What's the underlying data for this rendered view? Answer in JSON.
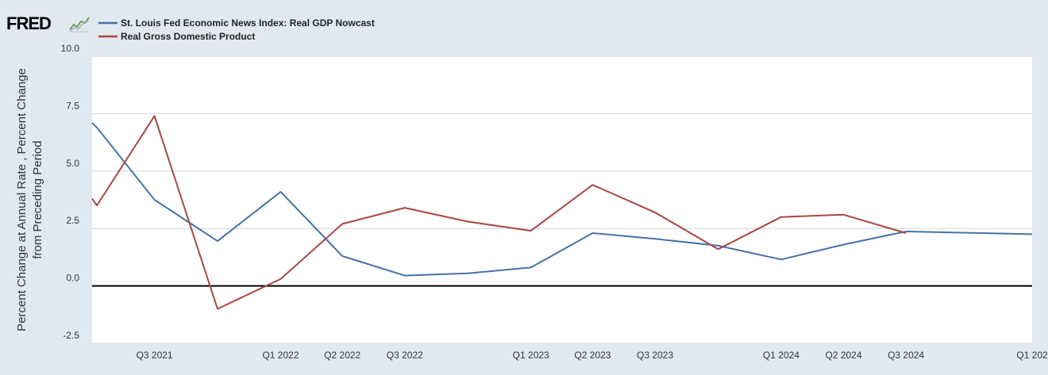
{
  "brand": {
    "logo_text": "FRED",
    "logo_icon": "fred-line-chart-icon"
  },
  "chart_data": {
    "type": "line",
    "ylabel": "Percent Change at Annual Rate , Percent Change from Preceding Period",
    "ylabel_lines": [
      "Percent Change at Annual Rate , Percent Change",
      "from Preceding Period"
    ],
    "ylim": [
      -2.5,
      10.0
    ],
    "yticks": [
      "10.0",
      "7.5",
      "5.0",
      "2.5",
      "0.0",
      "-2.5"
    ],
    "ytick_values": [
      10.0,
      7.5,
      5.0,
      2.5,
      0.0,
      -2.5
    ],
    "xlim": [
      "2021-04-01",
      "2025-01-01"
    ],
    "xticks": [
      {
        "label": "Q3 2021",
        "date": "2021-07-01"
      },
      {
        "label": "Q1 2022",
        "date": "2022-01-01"
      },
      {
        "label": "Q2 2022",
        "date": "2022-04-01"
      },
      {
        "label": "Q3 2022",
        "date": "2022-07-01"
      },
      {
        "label": "Q1 2023",
        "date": "2023-01-01"
      },
      {
        "label": "Q2 2023",
        "date": "2023-04-01"
      },
      {
        "label": "Q3 2023",
        "date": "2023-07-01"
      },
      {
        "label": "Q1 2024",
        "date": "2024-01-01"
      },
      {
        "label": "Q2 2024",
        "date": "2024-04-01"
      },
      {
        "label": "Q3 2024",
        "date": "2024-07-01"
      },
      {
        "label": "Q1 202",
        "date": "2025-01-01"
      }
    ],
    "grid": true,
    "legend_position": "top-left",
    "series": [
      {
        "name": "St. Louis Fed Economic News Index: Real GDP Nowcast",
        "color": "#4572a7",
        "points": [
          {
            "x": "2021-04-01",
            "y": 7.1
          },
          {
            "x": "2021-04-08",
            "y": 6.9
          },
          {
            "x": "2021-07-01",
            "y": 3.75
          },
          {
            "x": "2021-10-01",
            "y": 1.95
          },
          {
            "x": "2022-01-01",
            "y": 4.1
          },
          {
            "x": "2022-04-01",
            "y": 1.3
          },
          {
            "x": "2022-07-01",
            "y": 0.45
          },
          {
            "x": "2022-10-01",
            "y": 0.55
          },
          {
            "x": "2023-01-01",
            "y": 0.8
          },
          {
            "x": "2023-04-01",
            "y": 2.3
          },
          {
            "x": "2023-07-01",
            "y": 2.05
          },
          {
            "x": "2023-10-01",
            "y": 1.75
          },
          {
            "x": "2024-01-01",
            "y": 1.15
          },
          {
            "x": "2024-04-01",
            "y": 1.8
          },
          {
            "x": "2024-07-01",
            "y": 2.37
          },
          {
            "x": "2025-01-01",
            "y": 2.25
          }
        ]
      },
      {
        "name": "Real Gross Domestic Product",
        "color": "#aa4643",
        "points": [
          {
            "x": "2021-04-01",
            "y": 3.8
          },
          {
            "x": "2021-04-08",
            "y": 3.5
          },
          {
            "x": "2021-07-01",
            "y": 7.4
          },
          {
            "x": "2021-10-01",
            "y": -1.0
          },
          {
            "x": "2022-01-01",
            "y": 0.3
          },
          {
            "x": "2022-04-01",
            "y": 2.7
          },
          {
            "x": "2022-07-01",
            "y": 3.4
          },
          {
            "x": "2022-10-01",
            "y": 2.8
          },
          {
            "x": "2023-01-01",
            "y": 2.4
          },
          {
            "x": "2023-04-01",
            "y": 4.4
          },
          {
            "x": "2023-07-01",
            "y": 3.2
          },
          {
            "x": "2023-10-01",
            "y": 1.6
          },
          {
            "x": "2024-01-01",
            "y": 3.0
          },
          {
            "x": "2024-04-01",
            "y": 3.1
          },
          {
            "x": "2024-07-01",
            "y": 2.3
          }
        ]
      }
    ]
  }
}
